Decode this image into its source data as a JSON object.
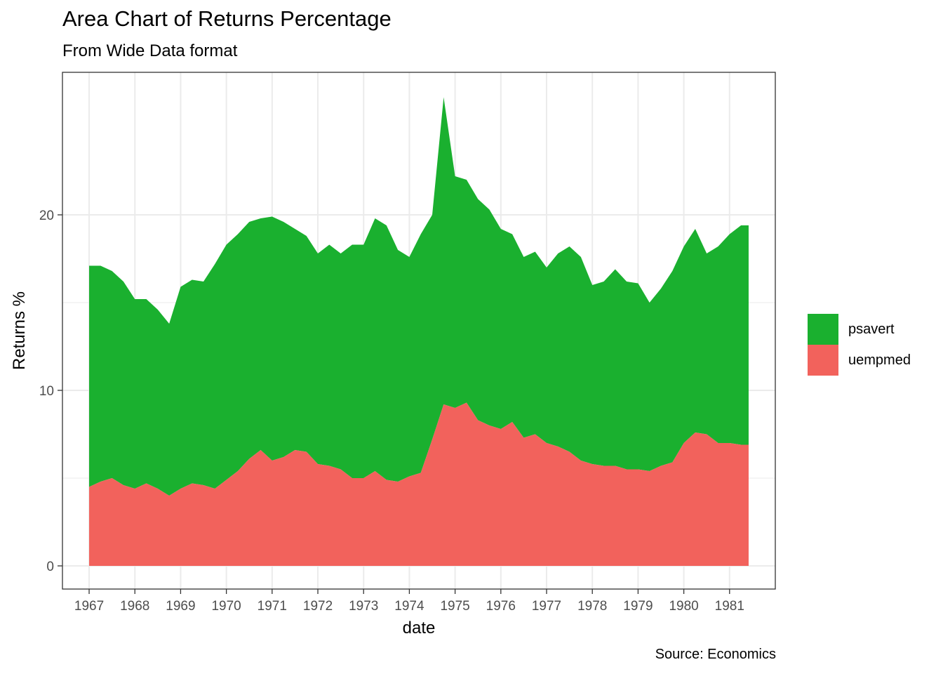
{
  "title": "Area Chart of Returns Percentage",
  "subtitle": "From Wide Data format",
  "caption": "Source: Economics",
  "colors": {
    "psavert": "#1AB02F",
    "uempmed": "#F2625C",
    "grid": "#EBEBEB",
    "panel_border": "#333333",
    "axis_text": "#4D4D4D"
  },
  "chart_data": {
    "type": "area",
    "stacked": true,
    "xlabel": "date",
    "ylabel": "Returns %",
    "x_ticks": [
      "1967",
      "1968",
      "1969",
      "1970",
      "1971",
      "1972",
      "1973",
      "1974",
      "1975",
      "1976",
      "1977",
      "1978",
      "1979",
      "1980",
      "1981"
    ],
    "y_ticks": [
      "0",
      "10",
      "20"
    ],
    "ylim": [
      -1.3,
      28
    ],
    "xlim": [
      "1966-06",
      "1982-01"
    ],
    "grid": true,
    "legend_position": "right",
    "x": [
      "1967-01",
      "1967-04",
      "1967-07",
      "1967-10",
      "1968-01",
      "1968-04",
      "1968-07",
      "1968-10",
      "1969-01",
      "1969-04",
      "1969-07",
      "1969-10",
      "1970-01",
      "1970-04",
      "1970-07",
      "1970-10",
      "1971-01",
      "1971-04",
      "1971-07",
      "1971-10",
      "1972-01",
      "1972-04",
      "1972-07",
      "1972-10",
      "1973-01",
      "1973-04",
      "1973-07",
      "1973-10",
      "1974-01",
      "1974-04",
      "1974-07",
      "1974-10",
      "1975-01",
      "1975-04",
      "1975-07",
      "1975-10",
      "1976-01",
      "1976-04",
      "1976-07",
      "1976-10",
      "1977-01",
      "1977-04",
      "1977-07",
      "1977-10",
      "1978-01",
      "1978-04",
      "1978-07",
      "1978-10",
      "1979-01",
      "1979-04",
      "1979-07",
      "1979-10",
      "1980-01",
      "1980-04",
      "1980-07",
      "1980-10",
      "1981-01",
      "1981-04",
      "1981-06"
    ],
    "series": [
      {
        "name": "uempmed",
        "values": [
          4.5,
          4.8,
          5.0,
          4.6,
          4.4,
          4.7,
          4.4,
          4.0,
          4.4,
          4.7,
          4.6,
          4.4,
          4.9,
          5.4,
          6.1,
          6.6,
          6.0,
          6.2,
          6.6,
          6.5,
          5.8,
          5.7,
          5.5,
          5.0,
          5.0,
          5.4,
          4.9,
          4.8,
          5.1,
          5.3,
          7.2,
          9.2,
          9.0,
          9.3,
          8.3,
          8.0,
          7.8,
          8.2,
          7.3,
          7.5,
          7.0,
          6.8,
          6.5,
          6.0,
          5.8,
          5.7,
          5.7,
          5.5,
          5.5,
          5.4,
          5.7,
          5.9,
          7.0,
          7.6,
          7.5,
          7.0,
          7.0,
          6.9,
          6.9
        ]
      },
      {
        "name": "psavert",
        "values": [
          12.6,
          12.3,
          11.8,
          11.6,
          10.8,
          10.5,
          10.2,
          9.8,
          11.5,
          11.6,
          11.6,
          12.8,
          13.4,
          13.5,
          13.5,
          13.2,
          13.9,
          13.4,
          12.6,
          12.3,
          12.0,
          12.6,
          12.3,
          13.3,
          13.3,
          14.4,
          14.5,
          13.2,
          12.5,
          13.6,
          12.8,
          17.5,
          13.2,
          12.7,
          12.6,
          12.3,
          11.4,
          10.7,
          10.3,
          10.4,
          10.0,
          11.0,
          11.7,
          11.6,
          10.2,
          10.5,
          11.2,
          10.7,
          10.6,
          9.6,
          10.1,
          10.9,
          11.2,
          11.6,
          10.3,
          11.2,
          11.9,
          12.5,
          12.5
        ]
      }
    ]
  }
}
